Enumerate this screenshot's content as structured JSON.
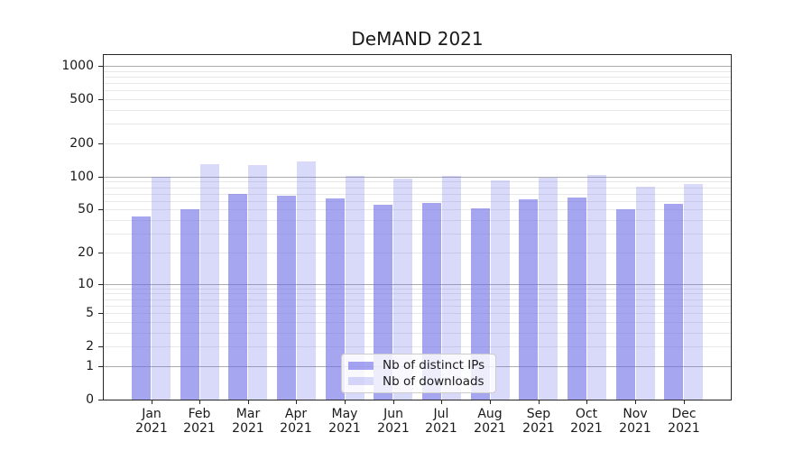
{
  "figure": {
    "title": "DeMAND 2021"
  },
  "chart_data": {
    "type": "bar",
    "title": "DeMAND 2021",
    "categories": [
      "Jan 2021",
      "Feb 2021",
      "Mar 2021",
      "Apr 2021",
      "May 2021",
      "Jun 2021",
      "Jul 2021",
      "Aug 2021",
      "Sep 2021",
      "Oct 2021",
      "Nov 2021",
      "Dec 2021"
    ],
    "series": [
      {
        "name": "Nb of distinct IPs",
        "color": "rgba(105,105,230,0.60)",
        "values": [
          43,
          50,
          70,
          67,
          63,
          56,
          58,
          51,
          62,
          65,
          50,
          57
        ]
      },
      {
        "name": "Nb of downloads",
        "color": "rgba(105,105,230,0.25)",
        "values": [
          100,
          131,
          127,
          137,
          101,
          96,
          101,
          92,
          97,
          103,
          81,
          85
        ]
      }
    ],
    "y_scale": "log1p",
    "y_ticks": [
      1000,
      500,
      200,
      100,
      50,
      20,
      10,
      5,
      2,
      1,
      0
    ],
    "y_major_gridlines": [
      1000,
      100,
      10,
      1
    ],
    "ylim": [
      0,
      1250
    ],
    "grid": "on",
    "legend_position": "lower center"
  },
  "colors": {
    "major_gridline": "#ababab",
    "minor_gridline": "#e8e8e8",
    "spine": "#262626",
    "text": "#1a1a1a",
    "legend_border": "#cccccc",
    "legend_bg": "rgba(255,255,255,0.8)"
  }
}
